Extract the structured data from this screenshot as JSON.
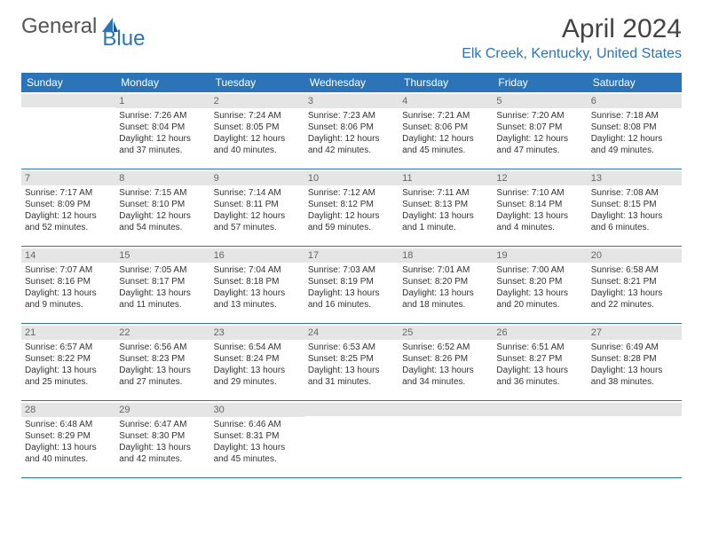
{
  "logo": {
    "text1": "General",
    "text2": "Blue"
  },
  "title": "April 2024",
  "location": "Elk Creek, Kentucky, United States",
  "colors": {
    "accent": "#2b74b8",
    "daynum_bg": "#e5e5e5"
  },
  "weekdays": [
    "Sunday",
    "Monday",
    "Tuesday",
    "Wednesday",
    "Thursday",
    "Friday",
    "Saturday"
  ],
  "weeks": [
    [
      {
        "empty": true
      },
      {
        "n": "1",
        "sunrise": "Sunrise: 7:26 AM",
        "sunset": "Sunset: 8:04 PM",
        "d1": "Daylight: 12 hours",
        "d2": "and 37 minutes."
      },
      {
        "n": "2",
        "sunrise": "Sunrise: 7:24 AM",
        "sunset": "Sunset: 8:05 PM",
        "d1": "Daylight: 12 hours",
        "d2": "and 40 minutes."
      },
      {
        "n": "3",
        "sunrise": "Sunrise: 7:23 AM",
        "sunset": "Sunset: 8:06 PM",
        "d1": "Daylight: 12 hours",
        "d2": "and 42 minutes."
      },
      {
        "n": "4",
        "sunrise": "Sunrise: 7:21 AM",
        "sunset": "Sunset: 8:06 PM",
        "d1": "Daylight: 12 hours",
        "d2": "and 45 minutes."
      },
      {
        "n": "5",
        "sunrise": "Sunrise: 7:20 AM",
        "sunset": "Sunset: 8:07 PM",
        "d1": "Daylight: 12 hours",
        "d2": "and 47 minutes."
      },
      {
        "n": "6",
        "sunrise": "Sunrise: 7:18 AM",
        "sunset": "Sunset: 8:08 PM",
        "d1": "Daylight: 12 hours",
        "d2": "and 49 minutes."
      }
    ],
    [
      {
        "n": "7",
        "sunrise": "Sunrise: 7:17 AM",
        "sunset": "Sunset: 8:09 PM",
        "d1": "Daylight: 12 hours",
        "d2": "and 52 minutes."
      },
      {
        "n": "8",
        "sunrise": "Sunrise: 7:15 AM",
        "sunset": "Sunset: 8:10 PM",
        "d1": "Daylight: 12 hours",
        "d2": "and 54 minutes."
      },
      {
        "n": "9",
        "sunrise": "Sunrise: 7:14 AM",
        "sunset": "Sunset: 8:11 PM",
        "d1": "Daylight: 12 hours",
        "d2": "and 57 minutes."
      },
      {
        "n": "10",
        "sunrise": "Sunrise: 7:12 AM",
        "sunset": "Sunset: 8:12 PM",
        "d1": "Daylight: 12 hours",
        "d2": "and 59 minutes."
      },
      {
        "n": "11",
        "sunrise": "Sunrise: 7:11 AM",
        "sunset": "Sunset: 8:13 PM",
        "d1": "Daylight: 13 hours",
        "d2": "and 1 minute."
      },
      {
        "n": "12",
        "sunrise": "Sunrise: 7:10 AM",
        "sunset": "Sunset: 8:14 PM",
        "d1": "Daylight: 13 hours",
        "d2": "and 4 minutes."
      },
      {
        "n": "13",
        "sunrise": "Sunrise: 7:08 AM",
        "sunset": "Sunset: 8:15 PM",
        "d1": "Daylight: 13 hours",
        "d2": "and 6 minutes."
      }
    ],
    [
      {
        "n": "14",
        "sunrise": "Sunrise: 7:07 AM",
        "sunset": "Sunset: 8:16 PM",
        "d1": "Daylight: 13 hours",
        "d2": "and 9 minutes."
      },
      {
        "n": "15",
        "sunrise": "Sunrise: 7:05 AM",
        "sunset": "Sunset: 8:17 PM",
        "d1": "Daylight: 13 hours",
        "d2": "and 11 minutes."
      },
      {
        "n": "16",
        "sunrise": "Sunrise: 7:04 AM",
        "sunset": "Sunset: 8:18 PM",
        "d1": "Daylight: 13 hours",
        "d2": "and 13 minutes."
      },
      {
        "n": "17",
        "sunrise": "Sunrise: 7:03 AM",
        "sunset": "Sunset: 8:19 PM",
        "d1": "Daylight: 13 hours",
        "d2": "and 16 minutes."
      },
      {
        "n": "18",
        "sunrise": "Sunrise: 7:01 AM",
        "sunset": "Sunset: 8:20 PM",
        "d1": "Daylight: 13 hours",
        "d2": "and 18 minutes."
      },
      {
        "n": "19",
        "sunrise": "Sunrise: 7:00 AM",
        "sunset": "Sunset: 8:20 PM",
        "d1": "Daylight: 13 hours",
        "d2": "and 20 minutes."
      },
      {
        "n": "20",
        "sunrise": "Sunrise: 6:58 AM",
        "sunset": "Sunset: 8:21 PM",
        "d1": "Daylight: 13 hours",
        "d2": "and 22 minutes."
      }
    ],
    [
      {
        "n": "21",
        "sunrise": "Sunrise: 6:57 AM",
        "sunset": "Sunset: 8:22 PM",
        "d1": "Daylight: 13 hours",
        "d2": "and 25 minutes."
      },
      {
        "n": "22",
        "sunrise": "Sunrise: 6:56 AM",
        "sunset": "Sunset: 8:23 PM",
        "d1": "Daylight: 13 hours",
        "d2": "and 27 minutes."
      },
      {
        "n": "23",
        "sunrise": "Sunrise: 6:54 AM",
        "sunset": "Sunset: 8:24 PM",
        "d1": "Daylight: 13 hours",
        "d2": "and 29 minutes."
      },
      {
        "n": "24",
        "sunrise": "Sunrise: 6:53 AM",
        "sunset": "Sunset: 8:25 PM",
        "d1": "Daylight: 13 hours",
        "d2": "and 31 minutes."
      },
      {
        "n": "25",
        "sunrise": "Sunrise: 6:52 AM",
        "sunset": "Sunset: 8:26 PM",
        "d1": "Daylight: 13 hours",
        "d2": "and 34 minutes."
      },
      {
        "n": "26",
        "sunrise": "Sunrise: 6:51 AM",
        "sunset": "Sunset: 8:27 PM",
        "d1": "Daylight: 13 hours",
        "d2": "and 36 minutes."
      },
      {
        "n": "27",
        "sunrise": "Sunrise: 6:49 AM",
        "sunset": "Sunset: 8:28 PM",
        "d1": "Daylight: 13 hours",
        "d2": "and 38 minutes."
      }
    ],
    [
      {
        "n": "28",
        "sunrise": "Sunrise: 6:48 AM",
        "sunset": "Sunset: 8:29 PM",
        "d1": "Daylight: 13 hours",
        "d2": "and 40 minutes."
      },
      {
        "n": "29",
        "sunrise": "Sunrise: 6:47 AM",
        "sunset": "Sunset: 8:30 PM",
        "d1": "Daylight: 13 hours",
        "d2": "and 42 minutes."
      },
      {
        "n": "30",
        "sunrise": "Sunrise: 6:46 AM",
        "sunset": "Sunset: 8:31 PM",
        "d1": "Daylight: 13 hours",
        "d2": "and 45 minutes."
      },
      {
        "empty": true
      },
      {
        "empty": true
      },
      {
        "empty": true
      },
      {
        "empty": true
      }
    ]
  ]
}
